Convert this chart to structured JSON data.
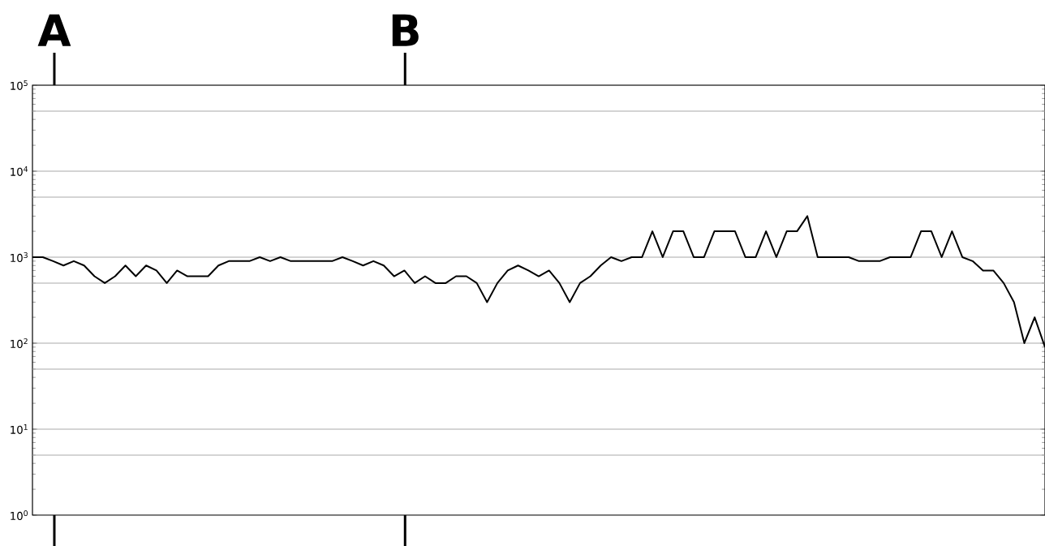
{
  "chart_data": {
    "type": "line",
    "categories": [
      null,
      null,
      null,
      null,
      null,
      null,
      null,
      null,
      null,
      null,
      null,
      null,
      null,
      null,
      null,
      null,
      null,
      null,
      null,
      null,
      null,
      null,
      null,
      null,
      null,
      null,
      null,
      null,
      null,
      null,
      null,
      null,
      null,
      null,
      null,
      null,
      null,
      null,
      null,
      null,
      null,
      null,
      null,
      null,
      null,
      null,
      null,
      null,
      null,
      null,
      null,
      null,
      null,
      null,
      null,
      null,
      null,
      null,
      null,
      null,
      null,
      null,
      null,
      null,
      null,
      null,
      null,
      null,
      null,
      null,
      null,
      null,
      null,
      null,
      null,
      null,
      null,
      null,
      null,
      null,
      null,
      null,
      null,
      null,
      null,
      null,
      null,
      null,
      null,
      null,
      null,
      null,
      null,
      null,
      null,
      null,
      null,
      null,
      null
    ],
    "series": [
      {
        "color": "#000000",
        "values": [
          1000,
          1000,
          900,
          800,
          900,
          800,
          600,
          500,
          600,
          800,
          600,
          800,
          700,
          500,
          700,
          600,
          600,
          600,
          800,
          900,
          900,
          900,
          1000,
          900,
          1000,
          900,
          900,
          900,
          900,
          900,
          1000,
          900,
          800,
          900,
          800,
          600,
          700,
          500,
          600,
          500,
          500,
          600,
          600,
          500,
          300,
          500,
          700,
          800,
          700,
          600,
          700,
          500,
          300,
          500,
          600,
          800,
          1000,
          900,
          1000,
          1000,
          2000,
          1000,
          2000,
          2000,
          1000,
          1000,
          2000,
          2000,
          2000,
          1000,
          1000,
          2000,
          1000,
          2000,
          2000,
          3000,
          1000,
          1000,
          1000,
          1000,
          900,
          900,
          900,
          1000,
          1000,
          1000,
          2000,
          2000,
          1000,
          2000,
          1000,
          900,
          700,
          700,
          500,
          300,
          100,
          200,
          90
        ]
      }
    ],
    "log": "y",
    "ylim": [
      1,
      100000
    ],
    "yticks": [
      {
        "value": 1,
        "label": "10$^{0}$"
      },
      {
        "value": 5,
        "label": null
      },
      {
        "value": 10,
        "label": "10$^{1}$"
      },
      {
        "value": 50,
        "label": null
      },
      {
        "value": 100,
        "label": "10$^{2}$"
      },
      {
        "value": 500,
        "label": null
      },
      {
        "value": 1000,
        "label": "10$^{3}$"
      },
      {
        "value": 5000,
        "label": null
      },
      {
        "value": 10000,
        "label": "10$^{4}$"
      },
      {
        "value": 50000,
        "label": null
      },
      {
        "value": 100000,
        "label": "10$^{5}$"
      }
    ],
    "grid": "y",
    "tick_labels": "y",
    "marker": "none",
    "annotations": [
      "A",
      "B"
    ]
  }
}
